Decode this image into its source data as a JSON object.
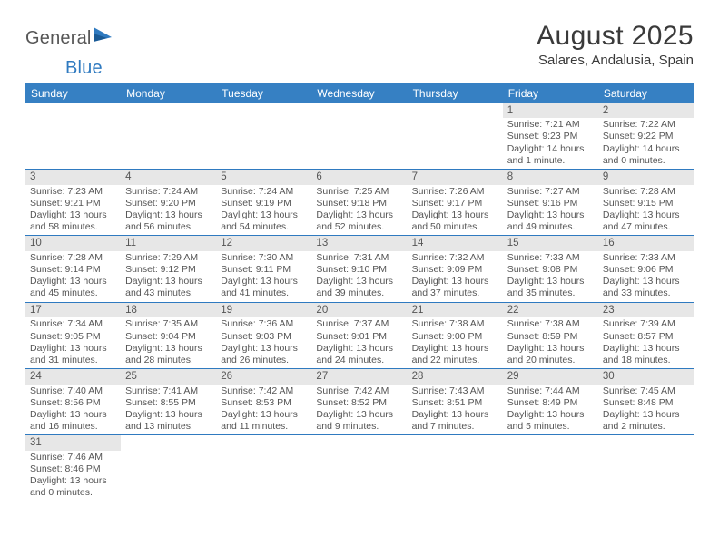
{
  "logo": {
    "part1": "General",
    "part2": "Blue"
  },
  "title": "August 2025",
  "location": "Salares, Andalusia, Spain",
  "day_headers": [
    "Sunday",
    "Monday",
    "Tuesday",
    "Wednesday",
    "Thursday",
    "Friday",
    "Saturday"
  ],
  "colors": {
    "header_bg": "#3680c3",
    "header_text": "#ffffff",
    "rule": "#2f7ac0",
    "daynum_bg": "#e7e7e7",
    "text": "#555555",
    "logo_gray": "#565656",
    "logo_blue": "#2f7ac0"
  },
  "grid": [
    [
      {
        "blank": true
      },
      {
        "blank": true
      },
      {
        "blank": true
      },
      {
        "blank": true
      },
      {
        "blank": true
      },
      {
        "day": "1",
        "sunrise": "Sunrise: 7:21 AM",
        "sunset": "Sunset: 9:23 PM",
        "daylight": "Daylight: 14 hours and 1 minute."
      },
      {
        "day": "2",
        "sunrise": "Sunrise: 7:22 AM",
        "sunset": "Sunset: 9:22 PM",
        "daylight": "Daylight: 14 hours and 0 minutes."
      }
    ],
    [
      {
        "day": "3",
        "sunrise": "Sunrise: 7:23 AM",
        "sunset": "Sunset: 9:21 PM",
        "daylight": "Daylight: 13 hours and 58 minutes."
      },
      {
        "day": "4",
        "sunrise": "Sunrise: 7:24 AM",
        "sunset": "Sunset: 9:20 PM",
        "daylight": "Daylight: 13 hours and 56 minutes."
      },
      {
        "day": "5",
        "sunrise": "Sunrise: 7:24 AM",
        "sunset": "Sunset: 9:19 PM",
        "daylight": "Daylight: 13 hours and 54 minutes."
      },
      {
        "day": "6",
        "sunrise": "Sunrise: 7:25 AM",
        "sunset": "Sunset: 9:18 PM",
        "daylight": "Daylight: 13 hours and 52 minutes."
      },
      {
        "day": "7",
        "sunrise": "Sunrise: 7:26 AM",
        "sunset": "Sunset: 9:17 PM",
        "daylight": "Daylight: 13 hours and 50 minutes."
      },
      {
        "day": "8",
        "sunrise": "Sunrise: 7:27 AM",
        "sunset": "Sunset: 9:16 PM",
        "daylight": "Daylight: 13 hours and 49 minutes."
      },
      {
        "day": "9",
        "sunrise": "Sunrise: 7:28 AM",
        "sunset": "Sunset: 9:15 PM",
        "daylight": "Daylight: 13 hours and 47 minutes."
      }
    ],
    [
      {
        "day": "10",
        "sunrise": "Sunrise: 7:28 AM",
        "sunset": "Sunset: 9:14 PM",
        "daylight": "Daylight: 13 hours and 45 minutes."
      },
      {
        "day": "11",
        "sunrise": "Sunrise: 7:29 AM",
        "sunset": "Sunset: 9:12 PM",
        "daylight": "Daylight: 13 hours and 43 minutes."
      },
      {
        "day": "12",
        "sunrise": "Sunrise: 7:30 AM",
        "sunset": "Sunset: 9:11 PM",
        "daylight": "Daylight: 13 hours and 41 minutes."
      },
      {
        "day": "13",
        "sunrise": "Sunrise: 7:31 AM",
        "sunset": "Sunset: 9:10 PM",
        "daylight": "Daylight: 13 hours and 39 minutes."
      },
      {
        "day": "14",
        "sunrise": "Sunrise: 7:32 AM",
        "sunset": "Sunset: 9:09 PM",
        "daylight": "Daylight: 13 hours and 37 minutes."
      },
      {
        "day": "15",
        "sunrise": "Sunrise: 7:33 AM",
        "sunset": "Sunset: 9:08 PM",
        "daylight": "Daylight: 13 hours and 35 minutes."
      },
      {
        "day": "16",
        "sunrise": "Sunrise: 7:33 AM",
        "sunset": "Sunset: 9:06 PM",
        "daylight": "Daylight: 13 hours and 33 minutes."
      }
    ],
    [
      {
        "day": "17",
        "sunrise": "Sunrise: 7:34 AM",
        "sunset": "Sunset: 9:05 PM",
        "daylight": "Daylight: 13 hours and 31 minutes."
      },
      {
        "day": "18",
        "sunrise": "Sunrise: 7:35 AM",
        "sunset": "Sunset: 9:04 PM",
        "daylight": "Daylight: 13 hours and 28 minutes."
      },
      {
        "day": "19",
        "sunrise": "Sunrise: 7:36 AM",
        "sunset": "Sunset: 9:03 PM",
        "daylight": "Daylight: 13 hours and 26 minutes."
      },
      {
        "day": "20",
        "sunrise": "Sunrise: 7:37 AM",
        "sunset": "Sunset: 9:01 PM",
        "daylight": "Daylight: 13 hours and 24 minutes."
      },
      {
        "day": "21",
        "sunrise": "Sunrise: 7:38 AM",
        "sunset": "Sunset: 9:00 PM",
        "daylight": "Daylight: 13 hours and 22 minutes."
      },
      {
        "day": "22",
        "sunrise": "Sunrise: 7:38 AM",
        "sunset": "Sunset: 8:59 PM",
        "daylight": "Daylight: 13 hours and 20 minutes."
      },
      {
        "day": "23",
        "sunrise": "Sunrise: 7:39 AM",
        "sunset": "Sunset: 8:57 PM",
        "daylight": "Daylight: 13 hours and 18 minutes."
      }
    ],
    [
      {
        "day": "24",
        "sunrise": "Sunrise: 7:40 AM",
        "sunset": "Sunset: 8:56 PM",
        "daylight": "Daylight: 13 hours and 16 minutes."
      },
      {
        "day": "25",
        "sunrise": "Sunrise: 7:41 AM",
        "sunset": "Sunset: 8:55 PM",
        "daylight": "Daylight: 13 hours and 13 minutes."
      },
      {
        "day": "26",
        "sunrise": "Sunrise: 7:42 AM",
        "sunset": "Sunset: 8:53 PM",
        "daylight": "Daylight: 13 hours and 11 minutes."
      },
      {
        "day": "27",
        "sunrise": "Sunrise: 7:42 AM",
        "sunset": "Sunset: 8:52 PM",
        "daylight": "Daylight: 13 hours and 9 minutes."
      },
      {
        "day": "28",
        "sunrise": "Sunrise: 7:43 AM",
        "sunset": "Sunset: 8:51 PM",
        "daylight": "Daylight: 13 hours and 7 minutes."
      },
      {
        "day": "29",
        "sunrise": "Sunrise: 7:44 AM",
        "sunset": "Sunset: 8:49 PM",
        "daylight": "Daylight: 13 hours and 5 minutes."
      },
      {
        "day": "30",
        "sunrise": "Sunrise: 7:45 AM",
        "sunset": "Sunset: 8:48 PM",
        "daylight": "Daylight: 13 hours and 2 minutes."
      }
    ],
    [
      {
        "day": "31",
        "sunrise": "Sunrise: 7:46 AM",
        "sunset": "Sunset: 8:46 PM",
        "daylight": "Daylight: 13 hours and 0 minutes."
      },
      {
        "blank": true
      },
      {
        "blank": true
      },
      {
        "blank": true
      },
      {
        "blank": true
      },
      {
        "blank": true
      },
      {
        "blank": true
      }
    ]
  ]
}
